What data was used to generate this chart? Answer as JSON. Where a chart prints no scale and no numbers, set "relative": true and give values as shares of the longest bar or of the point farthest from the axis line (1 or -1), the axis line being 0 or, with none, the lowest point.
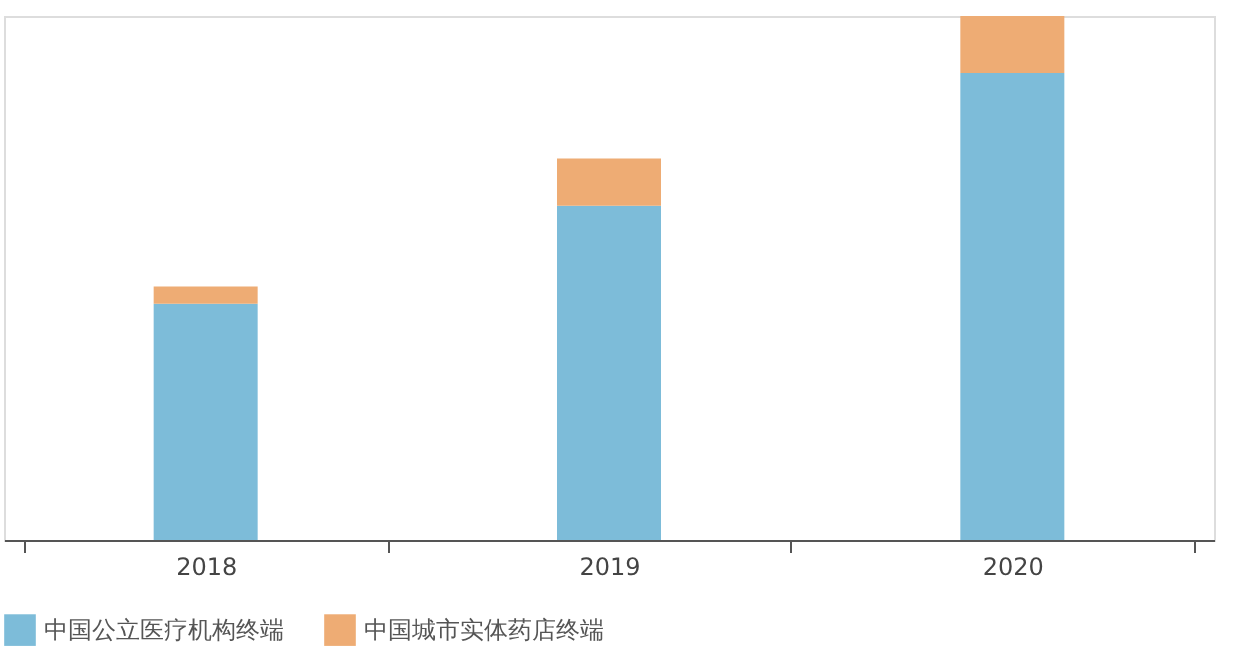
{
  "chart_data": {
    "type": "bar",
    "stacked": true,
    "relative": true,
    "legend": "bottom",
    "categories": [
      "2018",
      "2019",
      "2020"
    ],
    "series": [
      {
        "name": "中国公立医疗机构终端",
        "color": "#7dbcd9",
        "values": [
          0.451,
          0.638,
          0.891
        ]
      },
      {
        "name": "中国城市实体药店终端",
        "color": "#eeac74",
        "values": [
          0.033,
          0.09,
          0.109
        ]
      }
    ]
  }
}
